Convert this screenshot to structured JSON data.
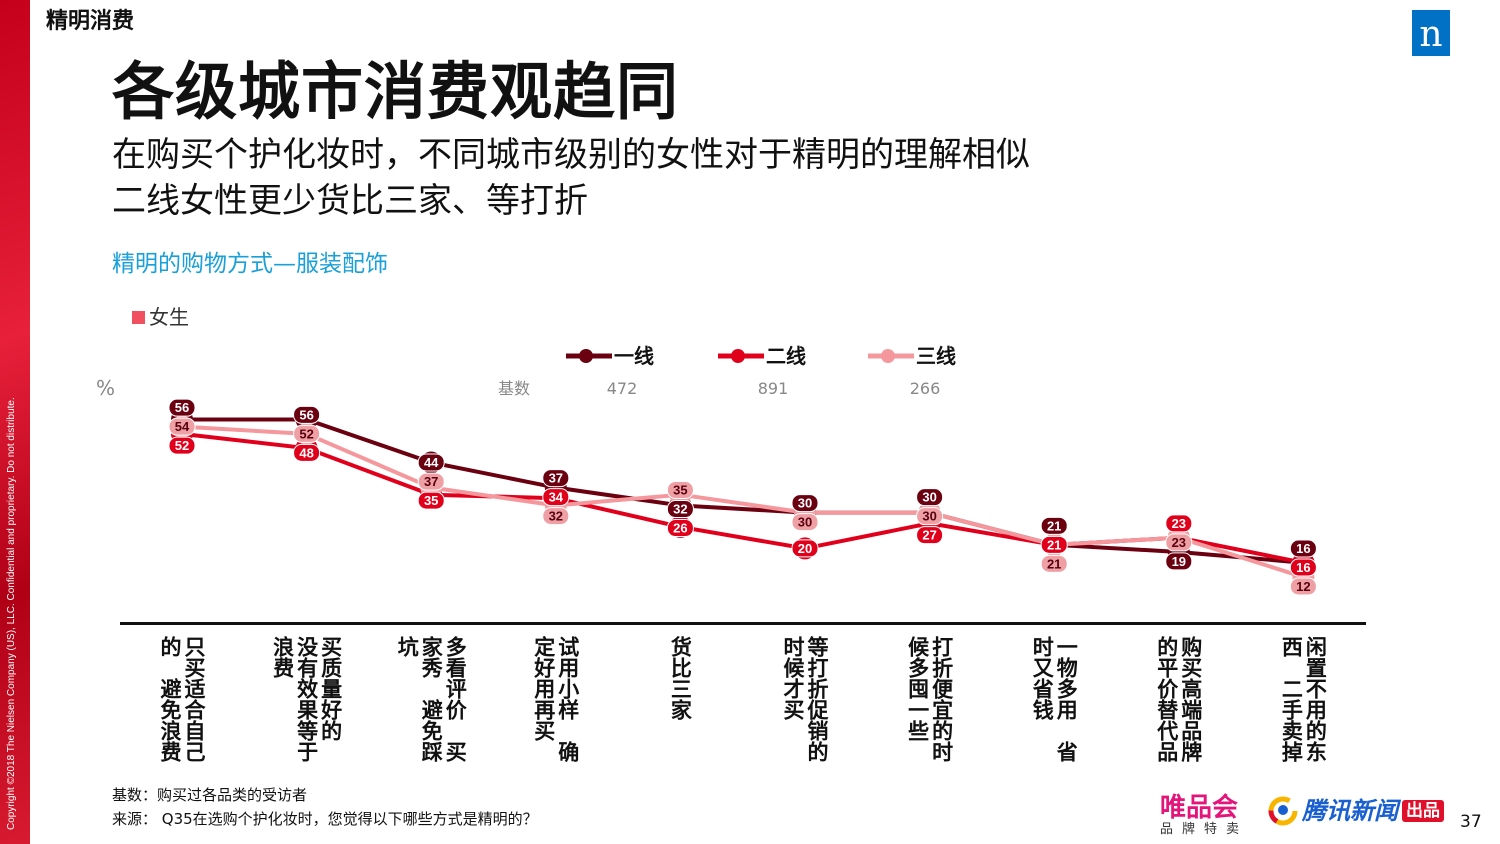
{
  "section": "精明消费",
  "copyright": "Copyright ©2018 The Nielsen Company (US), LLC. Confidential and proprietary. Do not distribute.",
  "logo": "n",
  "title": "各级城市消费观趋同",
  "subtitle1": "在购买个护化妆时，不同城市级别的女性对于精明的理解相似",
  "subtitle2": "二线女性更少货比三家、等打折",
  "chart_title": "精明的购物方式—服装配饰",
  "female_label": "女生",
  "percent_label": "%",
  "base_label": "基数",
  "footer": {
    "base": "基数：购买过各品类的受访者",
    "source": "来源：  Q35在选购个护化妆时，您觉得以下哪些方式是精明的？"
  },
  "brands": {
    "vip": "唯品会",
    "vip_sub": "品牌特卖",
    "tencent": "腾讯新闻",
    "chupin": "出品"
  },
  "page": "37",
  "chart_data": {
    "type": "line",
    "ylabel": "%",
    "ylim": [
      0,
      60
    ],
    "categories": [
      "只买适合自己的，避免浪费",
      "买质量好的，没有效果等于浪费",
      "多看评价，买家秀，避免踩坑",
      "试用小样，确定好用再买",
      "货比三家",
      "等打折促销的时候才买",
      "打折便宜的时候多囤一些",
      "一物多用，省时又省钱",
      "购买高端品牌的平价替代品",
      "闲置不用的东西，二手卖掉"
    ],
    "series": [
      {
        "name": "一线",
        "base": "472",
        "color": "#6b0010",
        "values": [
          56,
          56,
          44,
          37,
          32,
          30,
          30,
          21,
          19,
          16
        ]
      },
      {
        "name": "二线",
        "base": "891",
        "color": "#e0001b",
        "values": [
          52,
          48,
          35,
          34,
          26,
          20,
          27,
          21,
          23,
          16
        ]
      },
      {
        "name": "三线",
        "base": "266",
        "color": "#f5989d",
        "values": [
          54,
          52,
          37,
          32,
          35,
          30,
          30,
          21,
          23,
          12
        ]
      }
    ]
  }
}
